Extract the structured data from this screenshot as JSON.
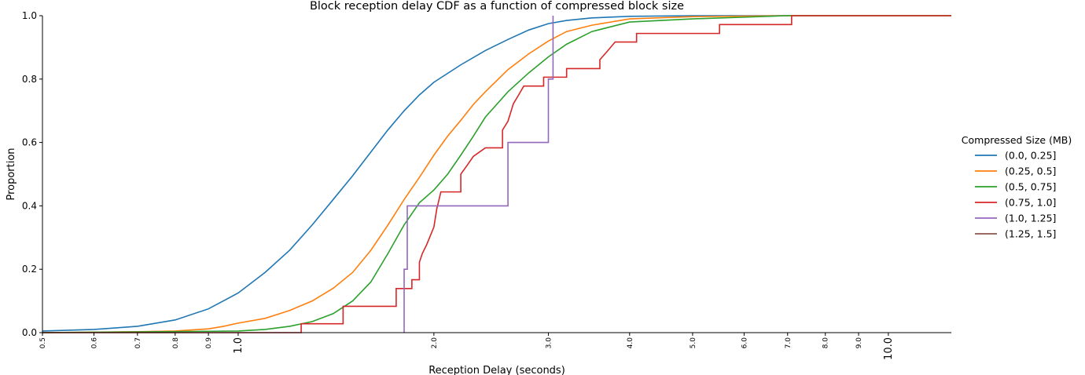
{
  "chart_data": {
    "type": "line",
    "title": "Block reception delay CDF as a function of compressed block size",
    "xlabel": "Reception Delay (seconds)",
    "ylabel": "Proportion",
    "x_scale": "log",
    "xlim": [
      0.5,
      12.5
    ],
    "ylim": [
      0.0,
      1.0
    ],
    "grid": false,
    "legend_placement": "right",
    "legend_title": "Compressed Size (MB)",
    "y_ticks": [
      "0.0",
      "0.2",
      "0.4",
      "0.6",
      "0.8",
      "1.0"
    ],
    "x_ticks": [
      {
        "value": 0.5,
        "label": "0.5",
        "size": "small"
      },
      {
        "value": 0.6,
        "label": "0.6",
        "size": "small"
      },
      {
        "value": 0.7,
        "label": "0.7",
        "size": "small"
      },
      {
        "value": 0.8,
        "label": "0.8",
        "size": "small"
      },
      {
        "value": 0.9,
        "label": "0.9",
        "size": "small"
      },
      {
        "value": 1.0,
        "label": "1.0",
        "size": "big"
      },
      {
        "value": 2.0,
        "label": "2.0",
        "size": "small"
      },
      {
        "value": 3.0,
        "label": "3.0",
        "size": "small"
      },
      {
        "value": 4.0,
        "label": "4.0",
        "size": "small"
      },
      {
        "value": 5.0,
        "label": "5.0",
        "size": "small"
      },
      {
        "value": 6.0,
        "label": "6.0",
        "size": "small"
      },
      {
        "value": 7.0,
        "label": "7.0",
        "size": "small"
      },
      {
        "value": 8.0,
        "label": "8.0",
        "size": "small"
      },
      {
        "value": 9.0,
        "label": "9.0",
        "size": "small"
      },
      {
        "value": 10.0,
        "label": "10.0",
        "size": "big"
      }
    ],
    "series": [
      {
        "name": "(0.0, 0.25]",
        "color": "#1f77b4",
        "step": false,
        "points": [
          [
            0.5,
            0.005
          ],
          [
            0.6,
            0.01
          ],
          [
            0.7,
            0.02
          ],
          [
            0.8,
            0.04
          ],
          [
            0.9,
            0.075
          ],
          [
            1.0,
            0.125
          ],
          [
            1.1,
            0.19
          ],
          [
            1.2,
            0.26
          ],
          [
            1.3,
            0.34
          ],
          [
            1.4,
            0.42
          ],
          [
            1.5,
            0.495
          ],
          [
            1.6,
            0.57
          ],
          [
            1.7,
            0.64
          ],
          [
            1.8,
            0.7
          ],
          [
            1.9,
            0.75
          ],
          [
            2.0,
            0.79
          ],
          [
            2.2,
            0.845
          ],
          [
            2.4,
            0.89
          ],
          [
            2.6,
            0.925
          ],
          [
            2.8,
            0.955
          ],
          [
            3.0,
            0.975
          ],
          [
            3.2,
            0.985
          ],
          [
            3.5,
            0.993
          ],
          [
            4.0,
            0.998
          ],
          [
            5.0,
            1.0
          ],
          [
            12.5,
            1.0
          ]
        ]
      },
      {
        "name": "(0.25, 0.5]",
        "color": "#ff7f0e",
        "step": false,
        "points": [
          [
            0.5,
            0.0
          ],
          [
            0.7,
            0.003
          ],
          [
            0.8,
            0.005
          ],
          [
            0.9,
            0.012
          ],
          [
            0.95,
            0.02
          ],
          [
            1.0,
            0.03
          ],
          [
            1.1,
            0.045
          ],
          [
            1.2,
            0.07
          ],
          [
            1.3,
            0.1
          ],
          [
            1.4,
            0.14
          ],
          [
            1.5,
            0.19
          ],
          [
            1.6,
            0.26
          ],
          [
            1.7,
            0.34
          ],
          [
            1.8,
            0.42
          ],
          [
            1.9,
            0.49
          ],
          [
            2.0,
            0.56
          ],
          [
            2.1,
            0.62
          ],
          [
            2.2,
            0.67
          ],
          [
            2.3,
            0.72
          ],
          [
            2.4,
            0.76
          ],
          [
            2.6,
            0.83
          ],
          [
            2.8,
            0.88
          ],
          [
            3.0,
            0.92
          ],
          [
            3.2,
            0.95
          ],
          [
            3.5,
            0.97
          ],
          [
            4.0,
            0.99
          ],
          [
            5.0,
            0.997
          ],
          [
            7.0,
            1.0
          ],
          [
            12.5,
            1.0
          ]
        ]
      },
      {
        "name": "(0.5, 0.75]",
        "color": "#2ca02c",
        "step": false,
        "points": [
          [
            0.5,
            0.0
          ],
          [
            1.0,
            0.005
          ],
          [
            1.1,
            0.01
          ],
          [
            1.2,
            0.02
          ],
          [
            1.3,
            0.035
          ],
          [
            1.4,
            0.06
          ],
          [
            1.5,
            0.1
          ],
          [
            1.6,
            0.16
          ],
          [
            1.7,
            0.25
          ],
          [
            1.8,
            0.34
          ],
          [
            1.9,
            0.41
          ],
          [
            2.0,
            0.45
          ],
          [
            2.1,
            0.5
          ],
          [
            2.2,
            0.56
          ],
          [
            2.3,
            0.62
          ],
          [
            2.4,
            0.68
          ],
          [
            2.6,
            0.76
          ],
          [
            2.8,
            0.82
          ],
          [
            3.0,
            0.87
          ],
          [
            3.2,
            0.91
          ],
          [
            3.5,
            0.95
          ],
          [
            4.0,
            0.98
          ],
          [
            5.0,
            0.99
          ],
          [
            7.0,
            1.0
          ],
          [
            12.5,
            1.0
          ]
        ]
      },
      {
        "name": "(0.75, 1.0]",
        "color": "#d62728",
        "step": true,
        "points": [
          [
            0.5,
            0.0
          ],
          [
            1.25,
            0.0
          ],
          [
            1.25,
            0.028
          ],
          [
            1.45,
            0.028
          ],
          [
            1.45,
            0.083
          ],
          [
            1.75,
            0.083
          ],
          [
            1.75,
            0.139
          ],
          [
            1.85,
            0.139
          ],
          [
            1.85,
            0.167
          ],
          [
            1.9,
            0.167
          ],
          [
            1.9,
            0.222
          ],
          [
            1.92,
            0.25
          ],
          [
            1.95,
            0.278
          ],
          [
            2.0,
            0.333
          ],
          [
            2.02,
            0.389
          ],
          [
            2.05,
            0.444
          ],
          [
            2.2,
            0.444
          ],
          [
            2.2,
            0.5
          ],
          [
            2.25,
            0.528
          ],
          [
            2.3,
            0.556
          ],
          [
            2.4,
            0.583
          ],
          [
            2.55,
            0.583
          ],
          [
            2.55,
            0.639
          ],
          [
            2.6,
            0.667
          ],
          [
            2.65,
            0.722
          ],
          [
            2.7,
            0.75
          ],
          [
            2.75,
            0.778
          ],
          [
            2.95,
            0.778
          ],
          [
            2.95,
            0.806
          ],
          [
            3.2,
            0.806
          ],
          [
            3.2,
            0.833
          ],
          [
            3.6,
            0.833
          ],
          [
            3.6,
            0.861
          ],
          [
            3.7,
            0.889
          ],
          [
            3.8,
            0.917
          ],
          [
            4.1,
            0.917
          ],
          [
            4.1,
            0.944
          ],
          [
            5.5,
            0.944
          ],
          [
            5.5,
            0.972
          ],
          [
            7.1,
            0.972
          ],
          [
            7.1,
            1.0
          ],
          [
            12.5,
            1.0
          ]
        ]
      },
      {
        "name": "(1.0, 1.25]",
        "color": "#9467bd",
        "step": true,
        "points": [
          [
            1.8,
            0.0
          ],
          [
            1.8,
            0.2
          ],
          [
            1.82,
            0.2
          ],
          [
            1.82,
            0.4
          ],
          [
            2.6,
            0.4
          ],
          [
            2.6,
            0.6
          ],
          [
            3.0,
            0.6
          ],
          [
            3.0,
            0.8
          ],
          [
            3.05,
            0.8
          ],
          [
            3.05,
            1.0
          ]
        ]
      },
      {
        "name": "(1.25, 1.5]",
        "color": "#8c564b",
        "step": true,
        "points": []
      }
    ]
  }
}
